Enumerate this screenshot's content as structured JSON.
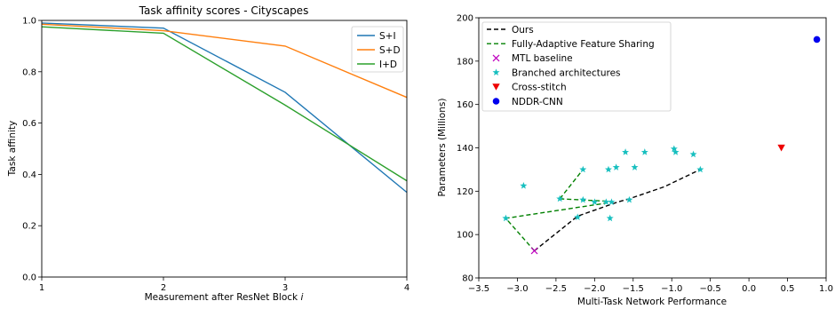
{
  "chart_data": [
    {
      "type": "line",
      "title": "Task affinity scores - Cityscapes",
      "xlabel": "Measurement after ResNet Block",
      "xlabel_var": "i",
      "ylabel": "Task affinity",
      "xlim": [
        1,
        4
      ],
      "ylim": [
        0,
        1
      ],
      "xticks": [
        "1",
        "2",
        "3",
        "4"
      ],
      "yticks": [
        "0.0",
        "0.2",
        "0.4",
        "0.6",
        "0.8",
        "1.0"
      ],
      "grid": false,
      "legend": "top-right",
      "x": [
        1,
        2,
        3,
        4
      ],
      "series": [
        {
          "name": "S+I",
          "color": "#1f77b4",
          "values": [
            0.99,
            0.97,
            0.72,
            0.33
          ]
        },
        {
          "name": "S+D",
          "color": "#ff7f0e",
          "values": [
            0.985,
            0.96,
            0.9,
            0.7
          ]
        },
        {
          "name": "I+D",
          "color": "#2ca02c",
          "values": [
            0.975,
            0.95,
            0.67,
            0.375
          ]
        }
      ]
    },
    {
      "type": "scatter",
      "xlabel": "Multi-Task Network Performance",
      "ylabel": "Parameters (Millions)",
      "xlim": [
        -3.5,
        1.0
      ],
      "ylim": [
        80,
        200
      ],
      "xticks": [
        "−3.5",
        "−3.0",
        "−2.5",
        "−2.0",
        "−1.5",
        "−1.0",
        "−0.5",
        "0.0",
        "0.5",
        "1.0"
      ],
      "yticks": [
        "80",
        "100",
        "120",
        "140",
        "160",
        "180",
        "200"
      ],
      "grid": false,
      "legend": "top-left",
      "series": [
        {
          "name": "Ours",
          "kind": "line",
          "dash": "dashed",
          "color": "#000000",
          "points": [
            [
              -2.78,
              92.5
            ],
            [
              -2.22,
              108.5
            ],
            [
              -1.7,
              115
            ],
            [
              -1.55,
              116.5
            ],
            [
              -1.1,
              122
            ],
            [
              -0.63,
              130
            ]
          ]
        },
        {
          "name": "Fully-Adaptive Feature Sharing",
          "kind": "line",
          "dash": "dashed",
          "color": "#008000",
          "segments": [
            [
              [
                -2.78,
                92.5
              ],
              [
                -3.15,
                107.5
              ],
              [
                -1.85,
                114.5
              ]
            ],
            [
              [
                -2.45,
                116.5
              ],
              [
                -2.15,
                130
              ]
            ],
            [
              [
                -2.45,
                116.5
              ],
              [
                -1.8,
                115.3
              ]
            ]
          ]
        },
        {
          "name": "MTL baseline",
          "kind": "scatter",
          "marker": "x",
          "color": "#bf00bf",
          "points": [
            [
              -2.78,
              92.5
            ]
          ]
        },
        {
          "name": "Branched architectures",
          "kind": "scatter",
          "marker": "star",
          "color": "#17bfbf",
          "points": [
            [
              -3.15,
              107.5
            ],
            [
              -2.92,
              122.5
            ],
            [
              -2.45,
              116.5
            ],
            [
              -2.22,
              108
            ],
            [
              -2.15,
              130
            ],
            [
              -2.15,
              116
            ],
            [
              -2.0,
              115
            ],
            [
              -1.85,
              115
            ],
            [
              -1.78,
              115
            ],
            [
              -1.8,
              107.5
            ],
            [
              -1.82,
              130
            ],
            [
              -1.72,
              131
            ],
            [
              -1.6,
              138
            ],
            [
              -1.55,
              116
            ],
            [
              -1.48,
              131
            ],
            [
              -1.35,
              138
            ],
            [
              -0.97,
              139.5
            ],
            [
              -0.95,
              138
            ],
            [
              -0.72,
              137
            ],
            [
              -0.63,
              130
            ]
          ]
        },
        {
          "name": "Cross-stitch",
          "kind": "scatter",
          "marker": "triangle-down",
          "color": "#ee0000",
          "points": [
            [
              0.42,
              140
            ]
          ]
        },
        {
          "name": "NDDR-CNN",
          "kind": "scatter",
          "marker": "circle",
          "color": "#0000ee",
          "points": [
            [
              0.88,
              190
            ]
          ]
        }
      ]
    }
  ]
}
